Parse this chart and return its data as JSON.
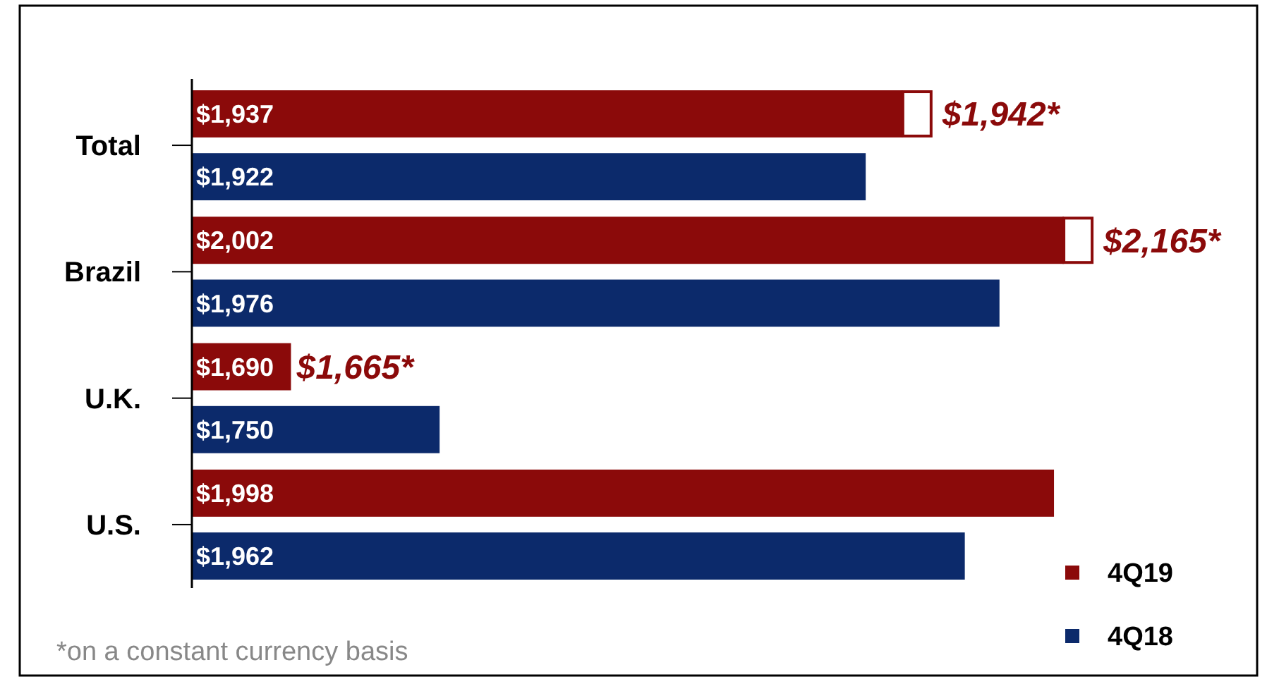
{
  "chart_data": {
    "type": "bar",
    "orientation": "horizontal",
    "categories": [
      "Total",
      "Brazil",
      "U.K.",
      "U.S."
    ],
    "series": [
      {
        "name": "4Q19",
        "color": "#8b0a0a",
        "values": [
          1937,
          2002,
          1690,
          1998
        ],
        "value_labels": [
          "$1,937",
          "$2,002",
          "$1,690",
          "$1,998"
        ]
      },
      {
        "name": "4Q18",
        "color": "#0c2a6b",
        "values": [
          1922,
          1976,
          1750,
          1962
        ],
        "value_labels": [
          "$1,922",
          "$1,976",
          "$1,750",
          "$1,962"
        ]
      }
    ],
    "xlim": [
      1650,
      2080
    ],
    "legend": "bottom right",
    "tick_labels": "y",
    "annotations": [
      "$1,942*",
      "$2,165*",
      "$1,665*",
      "*on a constant currency basis"
    ]
  }
}
